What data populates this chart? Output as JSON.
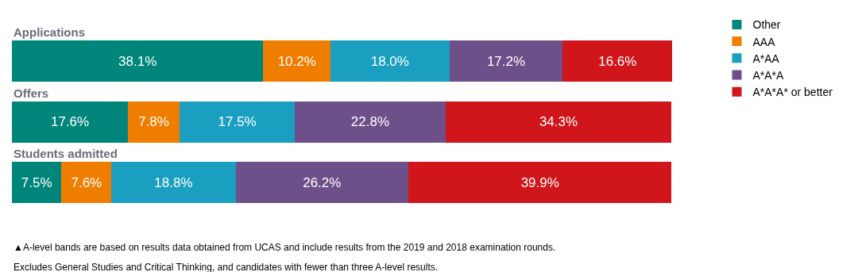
{
  "chart_data": {
    "type": "bar",
    "orientation": "horizontal",
    "stacked": true,
    "legend": "top right",
    "categories": [
      "Applications",
      "Offers",
      "Students admitted"
    ],
    "series": [
      {
        "name": "Other",
        "color": "#00857a",
        "values": [
          38.1,
          17.6,
          7.5
        ],
        "value_labels": [
          "38.1%",
          "17.6%",
          "7.5%"
        ]
      },
      {
        "name": "AAA",
        "color": "#ef7d00",
        "values": [
          10.2,
          7.8,
          7.6
        ],
        "value_labels": [
          "10.2%",
          "7.8%",
          "7.6%"
        ]
      },
      {
        "name": "A*AA",
        "color": "#1a9fc0",
        "values": [
          18.0,
          17.5,
          18.8
        ],
        "value_labels": [
          "18.0%",
          "17.5%",
          "18.8%"
        ]
      },
      {
        "name": "A*A*A",
        "color": "#6d4f8a",
        "values": [
          17.2,
          22.8,
          26.2
        ],
        "value_labels": [
          "17.2%",
          "22.8%",
          "26.2%"
        ]
      },
      {
        "name": "A*A*A* or better",
        "color": "#d0161b",
        "values": [
          16.6,
          34.3,
          39.9
        ],
        "value_labels": [
          "16.6%",
          "34.3%",
          "39.9%"
        ]
      }
    ],
    "annotations": [
      "▲A-level bands are based on results data obtained from UCAS and include results from the 2019 and 2018 examination rounds.",
      "Excludes General Studies and Critical Thinking, and candidates with fewer than three A-level results."
    ]
  }
}
